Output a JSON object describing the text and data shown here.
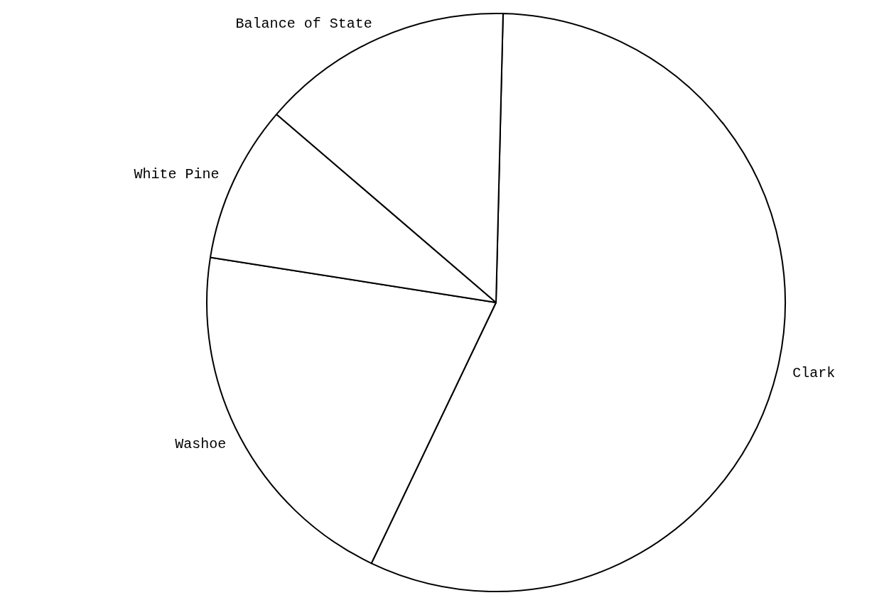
{
  "chart_data": {
    "type": "pie",
    "categories": [
      "Clark",
      "Washoe",
      "White Pine",
      "Balance of State"
    ],
    "values": [
      56.7,
      20.4,
      8.8,
      14.1
    ],
    "colors": [
      "#ffffff",
      "#ffffff",
      "#ffffff",
      "#ffffff"
    ],
    "legend": false
  }
}
